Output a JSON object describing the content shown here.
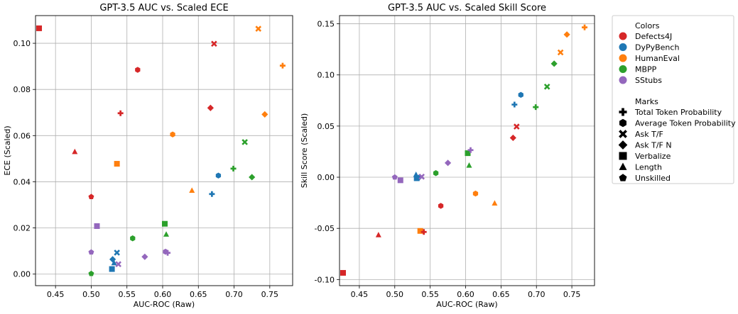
{
  "palette": {
    "Defects4J": "#d62728",
    "DyPyBench": "#1f77b4",
    "HumanEval": "#ff7f0e",
    "MBPP": "#2ca02c",
    "SStubs": "#9467bd"
  },
  "legend": {
    "colors_title": "Colors",
    "colors": [
      "Defects4J",
      "DyPyBench",
      "HumanEval",
      "MBPP",
      "SStubs"
    ],
    "marks_title": "Marks",
    "marks": [
      {
        "label": "Total Token Probability",
        "marker": "plus"
      },
      {
        "label": "Average Token Probability",
        "marker": "hexagon"
      },
      {
        "label": "Ask T/F",
        "marker": "x"
      },
      {
        "label": "Ask T/F N",
        "marker": "diamond"
      },
      {
        "label": "Verbalize",
        "marker": "square"
      },
      {
        "label": "Length",
        "marker": "triangle"
      },
      {
        "label": "Unskilled",
        "marker": "pentagon"
      }
    ]
  },
  "chart_data": [
    {
      "type": "scatter",
      "title": "GPT-3.5 AUC vs. Scaled ECE",
      "xlabel": "AUC-ROC (Raw)",
      "ylabel": "ECE (Scaled)",
      "xlim": [
        0.422,
        0.782
      ],
      "ylim": [
        -0.005,
        0.112
      ],
      "xticks": [
        "0.45",
        "0.50",
        "0.55",
        "0.60",
        "0.65",
        "0.70",
        "0.75"
      ],
      "yticks": [
        "0.00",
        "0.02",
        "0.04",
        "0.06",
        "0.08",
        "0.10"
      ],
      "grid": true,
      "points": [
        {
          "dataset": "Defects4J",
          "marker": "square",
          "x": 0.427,
          "y": 0.1065
        },
        {
          "dataset": "Defects4J",
          "marker": "x",
          "x": 0.672,
          "y": 0.0998
        },
        {
          "dataset": "Defects4J",
          "marker": "hexagon",
          "x": 0.565,
          "y": 0.0885
        },
        {
          "dataset": "Defects4J",
          "marker": "plus",
          "x": 0.541,
          "y": 0.0697
        },
        {
          "dataset": "Defects4J",
          "marker": "diamond",
          "x": 0.667,
          "y": 0.072
        },
        {
          "dataset": "Defects4J",
          "marker": "triangle",
          "x": 0.477,
          "y": 0.053
        },
        {
          "dataset": "Defects4J",
          "marker": "pentagon",
          "x": 0.5,
          "y": 0.0335
        },
        {
          "dataset": "HumanEval",
          "marker": "x",
          "x": 0.734,
          "y": 0.1063
        },
        {
          "dataset": "HumanEval",
          "marker": "plus",
          "x": 0.768,
          "y": 0.0903
        },
        {
          "dataset": "HumanEval",
          "marker": "diamond",
          "x": 0.743,
          "y": 0.0692
        },
        {
          "dataset": "HumanEval",
          "marker": "hexagon",
          "x": 0.614,
          "y": 0.0605
        },
        {
          "dataset": "HumanEval",
          "marker": "square",
          "x": 0.536,
          "y": 0.0478
        },
        {
          "dataset": "HumanEval",
          "marker": "triangle",
          "x": 0.641,
          "y": 0.0362
        },
        {
          "dataset": "MBPP",
          "marker": "x",
          "x": 0.715,
          "y": 0.0572
        },
        {
          "dataset": "MBPP",
          "marker": "plus",
          "x": 0.699,
          "y": 0.0457
        },
        {
          "dataset": "MBPP",
          "marker": "diamond",
          "x": 0.725,
          "y": 0.042
        },
        {
          "dataset": "MBPP",
          "marker": "square",
          "x": 0.603,
          "y": 0.0218
        },
        {
          "dataset": "MBPP",
          "marker": "triangle",
          "x": 0.605,
          "y": 0.0172
        },
        {
          "dataset": "MBPP",
          "marker": "hexagon",
          "x": 0.558,
          "y": 0.0155
        },
        {
          "dataset": "MBPP",
          "marker": "pentagon",
          "x": 0.5,
          "y": 0.0002
        },
        {
          "dataset": "DyPyBench",
          "marker": "hexagon",
          "x": 0.678,
          "y": 0.0427
        },
        {
          "dataset": "DyPyBench",
          "marker": "plus",
          "x": 0.669,
          "y": 0.0347
        },
        {
          "dataset": "DyPyBench",
          "marker": "x",
          "x": 0.536,
          "y": 0.0093
        },
        {
          "dataset": "DyPyBench",
          "marker": "diamond",
          "x": 0.53,
          "y": 0.0064
        },
        {
          "dataset": "DyPyBench",
          "marker": "triangle",
          "x": 0.532,
          "y": 0.0048
        },
        {
          "dataset": "DyPyBench",
          "marker": "square",
          "x": 0.529,
          "y": 0.0022
        },
        {
          "dataset": "SStubs",
          "marker": "square",
          "x": 0.508,
          "y": 0.0208
        },
        {
          "dataset": "SStubs",
          "marker": "pentagon",
          "x": 0.5,
          "y": 0.0095
        },
        {
          "dataset": "SStubs",
          "marker": "hexagon",
          "x": 0.604,
          "y": 0.0097
        },
        {
          "dataset": "SStubs",
          "marker": "plus",
          "x": 0.607,
          "y": 0.0092
        },
        {
          "dataset": "SStubs",
          "marker": "diamond",
          "x": 0.575,
          "y": 0.0075
        },
        {
          "dataset": "SStubs",
          "marker": "x",
          "x": 0.538,
          "y": 0.0043
        }
      ]
    },
    {
      "type": "scatter",
      "title": "GPT-3.5 AUC vs. Scaled Skill Score",
      "xlabel": "AUC-ROC (Raw)",
      "ylabel": "Skill Score (Scaled)",
      "xlim": [
        0.422,
        0.782
      ],
      "ylim": [
        -0.106,
        0.158
      ],
      "xticks": [
        "0.45",
        "0.50",
        "0.55",
        "0.60",
        "0.65",
        "0.70",
        "0.75"
      ],
      "yticks": [
        "0.15",
        "0.10",
        "0.05",
        "0.00",
        "-0.05",
        "-0.10"
      ],
      "grid": true,
      "points": [
        {
          "dataset": "HumanEval",
          "marker": "plus",
          "x": 0.768,
          "y": 0.1465
        },
        {
          "dataset": "HumanEval",
          "marker": "diamond",
          "x": 0.743,
          "y": 0.1395
        },
        {
          "dataset": "HumanEval",
          "marker": "x",
          "x": 0.734,
          "y": 0.122
        },
        {
          "dataset": "HumanEval",
          "marker": "hexagon",
          "x": 0.614,
          "y": -0.016
        },
        {
          "dataset": "HumanEval",
          "marker": "triangle",
          "x": 0.641,
          "y": -0.0255
        },
        {
          "dataset": "HumanEval",
          "marker": "square",
          "x": 0.536,
          "y": -0.0525
        },
        {
          "dataset": "MBPP",
          "marker": "diamond",
          "x": 0.725,
          "y": 0.111
        },
        {
          "dataset": "MBPP",
          "marker": "x",
          "x": 0.715,
          "y": 0.0885
        },
        {
          "dataset": "MBPP",
          "marker": "plus",
          "x": 0.699,
          "y": 0.0685
        },
        {
          "dataset": "MBPP",
          "marker": "square",
          "x": 0.603,
          "y": 0.0235
        },
        {
          "dataset": "MBPP",
          "marker": "triangle",
          "x": 0.605,
          "y": 0.0115
        },
        {
          "dataset": "MBPP",
          "marker": "hexagon",
          "x": 0.558,
          "y": 0.004
        },
        {
          "dataset": "DyPyBench",
          "marker": "hexagon",
          "x": 0.678,
          "y": 0.0805
        },
        {
          "dataset": "DyPyBench",
          "marker": "plus",
          "x": 0.669,
          "y": 0.071
        },
        {
          "dataset": "DyPyBench",
          "marker": "triangle",
          "x": 0.53,
          "y": 0.0025
        },
        {
          "dataset": "DyPyBench",
          "marker": "square",
          "x": 0.531,
          "y": -0.001
        },
        {
          "dataset": "DyPyBench",
          "marker": "diamond",
          "x": 0.534,
          "y": -0.0005
        },
        {
          "dataset": "Defects4J",
          "marker": "x",
          "x": 0.672,
          "y": 0.0495
        },
        {
          "dataset": "Defects4J",
          "marker": "diamond",
          "x": 0.667,
          "y": 0.0385
        },
        {
          "dataset": "Defects4J",
          "marker": "hexagon",
          "x": 0.565,
          "y": -0.028
        },
        {
          "dataset": "Defects4J",
          "marker": "plus",
          "x": 0.541,
          "y": -0.0535
        },
        {
          "dataset": "Defects4J",
          "marker": "triangle",
          "x": 0.477,
          "y": -0.0565
        },
        {
          "dataset": "Defects4J",
          "marker": "square",
          "x": 0.427,
          "y": -0.0935
        },
        {
          "dataset": "SStubs",
          "marker": "plus",
          "x": 0.607,
          "y": 0.0265
        },
        {
          "dataset": "SStubs",
          "marker": "diamond",
          "x": 0.575,
          "y": 0.014
        },
        {
          "dataset": "SStubs",
          "marker": "x",
          "x": 0.538,
          "y": 0.0005
        },
        {
          "dataset": "SStubs",
          "marker": "pentagon",
          "x": 0.5,
          "y": 0.0
        },
        {
          "dataset": "SStubs",
          "marker": "square",
          "x": 0.508,
          "y": -0.003
        }
      ]
    }
  ]
}
